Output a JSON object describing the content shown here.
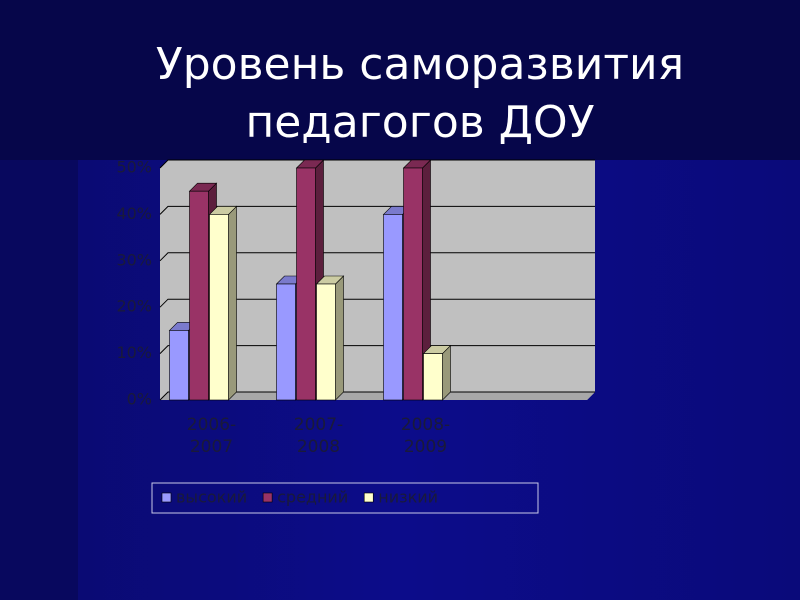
{
  "chart_data": {
    "type": "bar3d",
    "title": "Уровень саморазвития педагогов ДОУ",
    "categories": [
      "2006-2007",
      "2007-2008",
      "2008-2009"
    ],
    "series": [
      {
        "name": "высокий",
        "color": "#9999ff",
        "values": [
          15,
          25,
          40
        ]
      },
      {
        "name": "средний",
        "color": "#993366",
        "values": [
          45,
          50,
          50
        ]
      },
      {
        "name": "низкий",
        "color": "#ffffcc",
        "values": [
          40,
          25,
          10
        ]
      }
    ],
    "ylim": [
      0,
      50
    ],
    "yticks": [
      {
        "value": 0,
        "label": "0%"
      },
      {
        "value": 10,
        "label": "10%"
      },
      {
        "value": 20,
        "label": "20%"
      },
      {
        "value": 30,
        "label": "30%"
      },
      {
        "value": 40,
        "label": "40%"
      },
      {
        "value": 50,
        "label": "50%"
      }
    ],
    "grid": true,
    "legend": "bottom"
  }
}
